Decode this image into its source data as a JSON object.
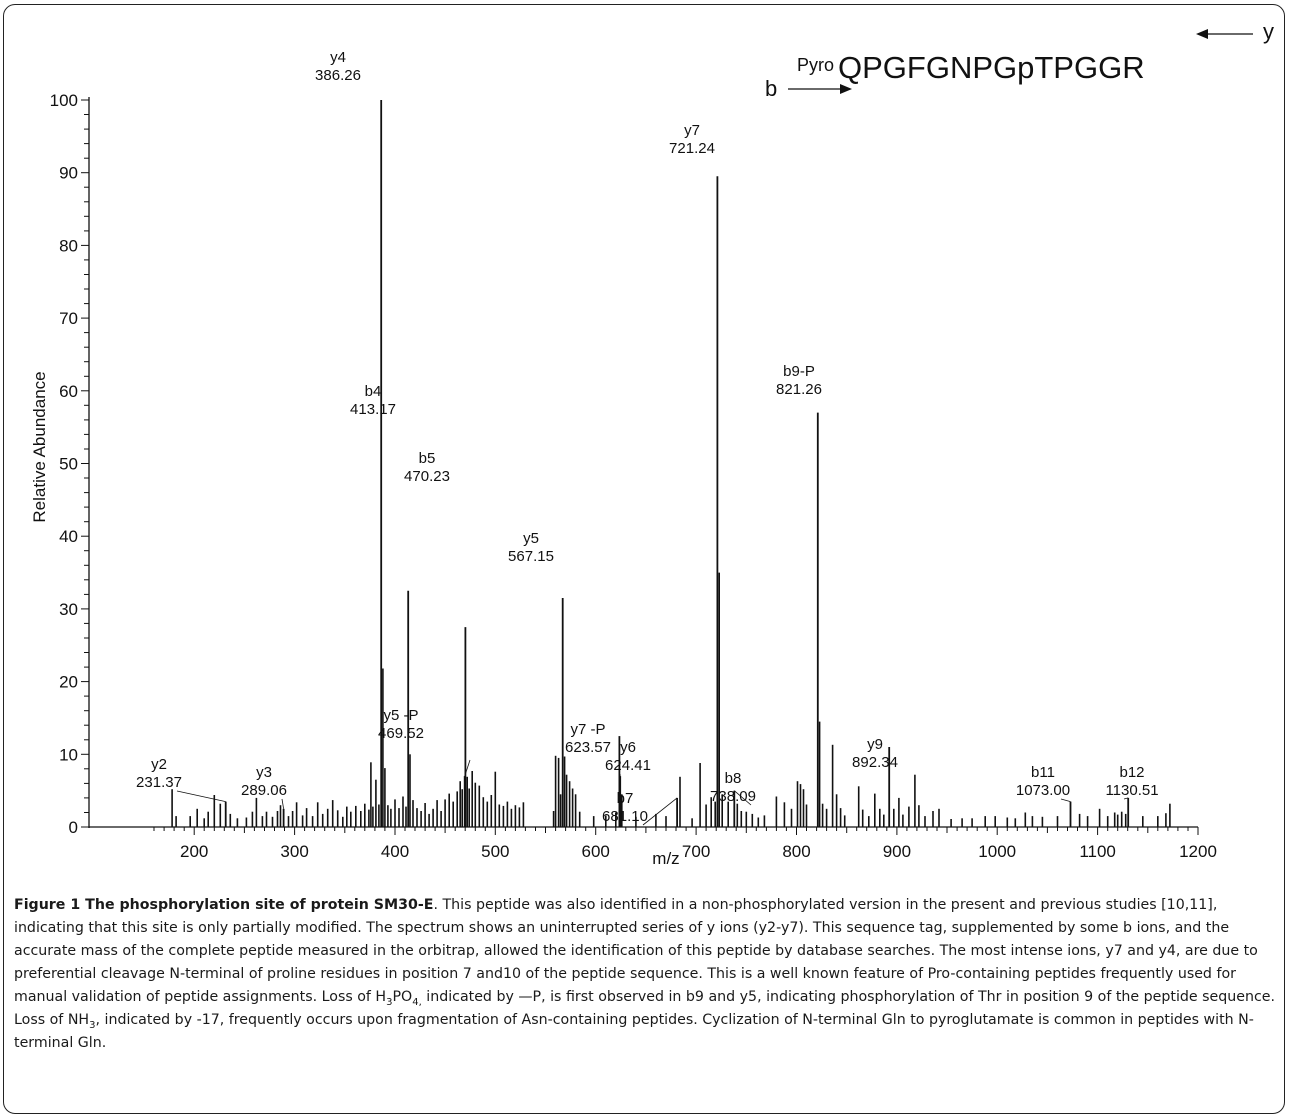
{
  "chart_data": {
    "type": "bar",
    "xlabel": "m/z",
    "ylabel": "Relative Abundance",
    "xlim": [
      150,
      1200
    ],
    "ylim": [
      0,
      100
    ],
    "xticks": [
      200,
      300,
      400,
      500,
      600,
      700,
      800,
      900,
      1000,
      1100,
      1200
    ],
    "yticks": [
      0,
      10,
      20,
      30,
      40,
      50,
      60,
      70,
      80,
      90,
      100
    ],
    "peptide": {
      "prefix": "Pyro",
      "sequence": "QPGFGNPGpTPGGR",
      "b_label": "b",
      "y_label": "y"
    },
    "annotated_peaks": [
      {
        "ion": "y2",
        "mz": 231.37,
        "value": 3.5
      },
      {
        "ion": "y3",
        "mz": 289.06,
        "value": 2.5
      },
      {
        "ion": "y4",
        "mz": 386.26,
        "value": 100
      },
      {
        "ion": "b4",
        "mz": 413.17,
        "value": 32.5
      },
      {
        "ion": "y5 -P",
        "mz": 469.52,
        "value": 7
      },
      {
        "ion": "b5",
        "mz": 470.23,
        "value": 27.5
      },
      {
        "ion": "y5",
        "mz": 567.15,
        "value": 31.5
      },
      {
        "ion": "y7 -P",
        "mz": 623.57,
        "value": 12.5
      },
      {
        "ion": "y6",
        "mz": 624.41,
        "value": 7
      },
      {
        "ion": "b7",
        "mz": 681.1,
        "value": 4
      },
      {
        "ion": "y7",
        "mz": 721.24,
        "value": 89.5
      },
      {
        "ion": "b8",
        "mz": 738.09,
        "value": 5
      },
      {
        "ion": "b9-P",
        "mz": 821.26,
        "value": 57
      },
      {
        "ion": "y9",
        "mz": 892.34,
        "value": 11
      },
      {
        "ion": "b11",
        "mz": 1073.0,
        "value": 3.5
      },
      {
        "ion": "b12",
        "mz": 1130.51,
        "value": 4
      }
    ],
    "other_peaks": [
      [
        178,
        5.2
      ],
      [
        182,
        1.5
      ],
      [
        196,
        1.5
      ],
      [
        203,
        2.5
      ],
      [
        210,
        1.2
      ],
      [
        214,
        2.1
      ],
      [
        220,
        4.4
      ],
      [
        226,
        3.2
      ],
      [
        236,
        1.8
      ],
      [
        243,
        1.2
      ],
      [
        252,
        1.3
      ],
      [
        258,
        2.1
      ],
      [
        262,
        4
      ],
      [
        268,
        1.5
      ],
      [
        272,
        2.1
      ],
      [
        278,
        1.4
      ],
      [
        283,
        2.2
      ],
      [
        286,
        3
      ],
      [
        294,
        1.5
      ],
      [
        298,
        2.2
      ],
      [
        302,
        3.4
      ],
      [
        308,
        1.6
      ],
      [
        312,
        2.6
      ],
      [
        318,
        1.5
      ],
      [
        323,
        3.4
      ],
      [
        328,
        1.8
      ],
      [
        333,
        2.5
      ],
      [
        338,
        3.7
      ],
      [
        343,
        2.3
      ],
      [
        348,
        1.4
      ],
      [
        352,
        2.8
      ],
      [
        356,
        2.1
      ],
      [
        361,
        2.9
      ],
      [
        366,
        2.2
      ],
      [
        370,
        3.2
      ],
      [
        374,
        2.4
      ],
      [
        376,
        8.9
      ],
      [
        378,
        2.8
      ],
      [
        381,
        6.5
      ],
      [
        384,
        3.1
      ],
      [
        388,
        21.8
      ],
      [
        390,
        8.1
      ],
      [
        393,
        3
      ],
      [
        396,
        2.5
      ],
      [
        400,
        3.8
      ],
      [
        404,
        2.6
      ],
      [
        408,
        4.2
      ],
      [
        411,
        2.8
      ],
      [
        415,
        10
      ],
      [
        418,
        3.7
      ],
      [
        422,
        2.6
      ],
      [
        426,
        2.2
      ],
      [
        430,
        3.3
      ],
      [
        434,
        1.8
      ],
      [
        438,
        2.5
      ],
      [
        442,
        3.7
      ],
      [
        446,
        2.2
      ],
      [
        450,
        3.8
      ],
      [
        454,
        4.6
      ],
      [
        458,
        3.5
      ],
      [
        462,
        4.9
      ],
      [
        465,
        6.3
      ],
      [
        467,
        5.2
      ],
      [
        472,
        6.9
      ],
      [
        474,
        5.3
      ],
      [
        477,
        7.7
      ],
      [
        480,
        6.1
      ],
      [
        484,
        5.7
      ],
      [
        488,
        4.1
      ],
      [
        492,
        3.5
      ],
      [
        496,
        4.4
      ],
      [
        500,
        7.6
      ],
      [
        504,
        3.1
      ],
      [
        508,
        2.9
      ],
      [
        512,
        3.5
      ],
      [
        516,
        2.5
      ],
      [
        520,
        3
      ],
      [
        524,
        2.7
      ],
      [
        528,
        3.4
      ],
      [
        558,
        2.2
      ],
      [
        560,
        9.8
      ],
      [
        563,
        9.5
      ],
      [
        565,
        4.5
      ],
      [
        569,
        9.7
      ],
      [
        571,
        7.2
      ],
      [
        574,
        6.3
      ],
      [
        577,
        5.3
      ],
      [
        580,
        4.5
      ],
      [
        584,
        2.1
      ],
      [
        598,
        1.5
      ],
      [
        610,
        1.6
      ],
      [
        620,
        2
      ],
      [
        626,
        4.5
      ],
      [
        640,
        1.4
      ],
      [
        660,
        1.8
      ],
      [
        670,
        1.5
      ],
      [
        684,
        6.9
      ],
      [
        696,
        1.2
      ],
      [
        704,
        8.8
      ],
      [
        710,
        3.1
      ],
      [
        715,
        4.1
      ],
      [
        719,
        3.5
      ],
      [
        723,
        35
      ],
      [
        726,
        4.5
      ],
      [
        732,
        3.5
      ],
      [
        741,
        3.2
      ],
      [
        745,
        2.2
      ],
      [
        750,
        2.1
      ],
      [
        756,
        1.8
      ],
      [
        762,
        1.3
      ],
      [
        768,
        1.6
      ],
      [
        780,
        4.2
      ],
      [
        788,
        3.4
      ],
      [
        795,
        2.5
      ],
      [
        801,
        6.3
      ],
      [
        804,
        5.9
      ],
      [
        807,
        5.2
      ],
      [
        810,
        3.1
      ],
      [
        823,
        14.5
      ],
      [
        826,
        3.2
      ],
      [
        830,
        2.5
      ],
      [
        836,
        11.3
      ],
      [
        840,
        4.5
      ],
      [
        844,
        2.6
      ],
      [
        848,
        1.6
      ],
      [
        862,
        5.6
      ],
      [
        866,
        2.4
      ],
      [
        872,
        1.5
      ],
      [
        878,
        4.6
      ],
      [
        883,
        2.5
      ],
      [
        887,
        1.7
      ],
      [
        897,
        2.5
      ],
      [
        902,
        4
      ],
      [
        906,
        1.7
      ],
      [
        912,
        2.8
      ],
      [
        918,
        7.2
      ],
      [
        922,
        3
      ],
      [
        928,
        1.5
      ],
      [
        936,
        2.2
      ],
      [
        942,
        2.5
      ],
      [
        954,
        1.1
      ],
      [
        965,
        1.2
      ],
      [
        975,
        1.2
      ],
      [
        988,
        1.5
      ],
      [
        998,
        1.5
      ],
      [
        1010,
        1.3
      ],
      [
        1018,
        1.2
      ],
      [
        1028,
        2
      ],
      [
        1035,
        1.5
      ],
      [
        1045,
        1.4
      ],
      [
        1060,
        1.5
      ],
      [
        1082,
        1.8
      ],
      [
        1090,
        1.5
      ],
      [
        1102,
        2.5
      ],
      [
        1110,
        1.5
      ],
      [
        1117,
        2
      ],
      [
        1120,
        1.7
      ],
      [
        1124,
        2.1
      ],
      [
        1128,
        1.8
      ],
      [
        1145,
        1.5
      ],
      [
        1160,
        1.5
      ],
      [
        1168,
        1.9
      ],
      [
        1172,
        3.2
      ]
    ]
  },
  "caption": {
    "title": "Figure 1 The phosphorylation site of protein SM30-E",
    "part1": ". This peptide was also identified in a non-phosphorylated version in the present and previous studies [10,11], indicating that this site is only partially modified. The spectrum shows an uninterrupted series of y ions (y2-y7). This sequence tag, supplemented by some b ions, and the accurate mass of the complete peptide measured in the orbitrap, allowed the identification of this peptide by database searches. The most intense ions, y7 and y4, are due to preferential cleavage N-terminal of proline residues in position 7 and10 of the peptide sequence. This is a well known feature of Pro-containing peptides frequently used for manual validation of peptide assignments. Loss of H",
    "sub1": "3",
    "mid1": "PO",
    "sub2": "4,",
    "part2": " indicated by —P, is first observed in b9 and y5, indicating phosphorylation of Thr in position 9 of the peptide sequence. Loss of NH",
    "sub3": "3",
    "part3": ", indicated by -17, frequently occurs upon fragmentation of Asn-containing peptides. Cyclization of N-terminal Gln to pyroglutamate is common in peptides with N-terminal Gln."
  }
}
